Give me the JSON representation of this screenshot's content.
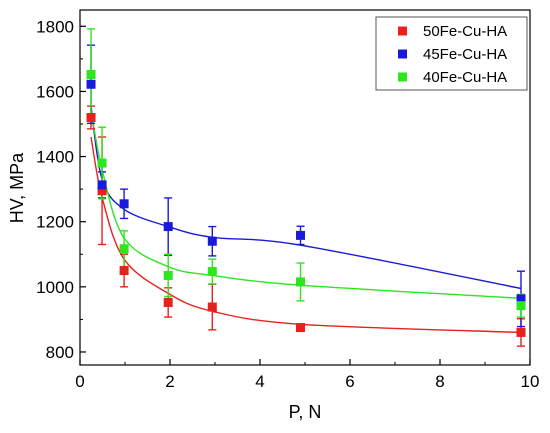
{
  "chart_data": {
    "type": "scatter",
    "title": "",
    "xlabel": "P, N",
    "ylabel": "HV, MPa",
    "xlim": [
      0,
      10
    ],
    "ylim": [
      760,
      1850
    ],
    "x_ticks": [
      0,
      2,
      4,
      6,
      8,
      10
    ],
    "y_ticks": [
      800,
      1000,
      1200,
      1400,
      1600,
      1800
    ],
    "legend_position": "top-right",
    "error_bars": true,
    "fit_lines": true,
    "series": [
      {
        "name": "50Fe-Cu-HA",
        "color": "#e8211d",
        "points": [
          {
            "x": 0.245,
            "y": 1520,
            "err": 35
          },
          {
            "x": 0.49,
            "y": 1295,
            "err": 165
          },
          {
            "x": 0.98,
            "y": 1050,
            "err": 50
          },
          {
            "x": 1.96,
            "y": 952,
            "err": 45
          },
          {
            "x": 2.94,
            "y": 938,
            "err": 70
          },
          {
            "x": 4.9,
            "y": 875,
            "err": 8
          },
          {
            "x": 9.8,
            "y": 860,
            "err": 42
          }
        ],
        "fit": [
          [
            0.245,
            1460
          ],
          [
            0.49,
            1275
          ],
          [
            0.98,
            1085
          ],
          [
            1.96,
            980
          ],
          [
            2.94,
            925
          ],
          [
            4.9,
            885
          ],
          [
            9.8,
            860
          ]
        ]
      },
      {
        "name": "45Fe-Cu-HA",
        "color": "#1a1adb",
        "points": [
          {
            "x": 0.245,
            "y": 1622,
            "err": 120
          },
          {
            "x": 0.49,
            "y": 1313,
            "err": 40
          },
          {
            "x": 0.98,
            "y": 1255,
            "err": 45
          },
          {
            "x": 1.96,
            "y": 1185,
            "err": 88
          },
          {
            "x": 2.94,
            "y": 1140,
            "err": 45
          },
          {
            "x": 4.9,
            "y": 1158,
            "err": 28
          },
          {
            "x": 9.8,
            "y": 963,
            "err": 85
          }
        ],
        "fit": [
          [
            0.245,
            1555
          ],
          [
            0.49,
            1330
          ],
          [
            0.98,
            1238
          ],
          [
            1.96,
            1185
          ],
          [
            2.94,
            1152
          ],
          [
            4.9,
            1128
          ],
          [
            9.8,
            995
          ]
        ]
      },
      {
        "name": "40Fe-Cu-HA",
        "color": "#2ee61f",
        "points": [
          {
            "x": 0.245,
            "y": 1652,
            "err": 140
          },
          {
            "x": 0.49,
            "y": 1380,
            "err": 110
          },
          {
            "x": 0.98,
            "y": 1117,
            "err": 55
          },
          {
            "x": 1.96,
            "y": 1035,
            "err": 65
          },
          {
            "x": 2.94,
            "y": 1047,
            "err": 38
          },
          {
            "x": 4.9,
            "y": 1015,
            "err": 58
          },
          {
            "x": 9.8,
            "y": 942,
            "err": 35
          }
        ],
        "fit": [
          [
            0.245,
            1545
          ],
          [
            0.49,
            1360
          ],
          [
            0.98,
            1150
          ],
          [
            1.96,
            1062
          ],
          [
            2.94,
            1035
          ],
          [
            4.9,
            1005
          ],
          [
            9.8,
            965
          ]
        ]
      }
    ]
  }
}
